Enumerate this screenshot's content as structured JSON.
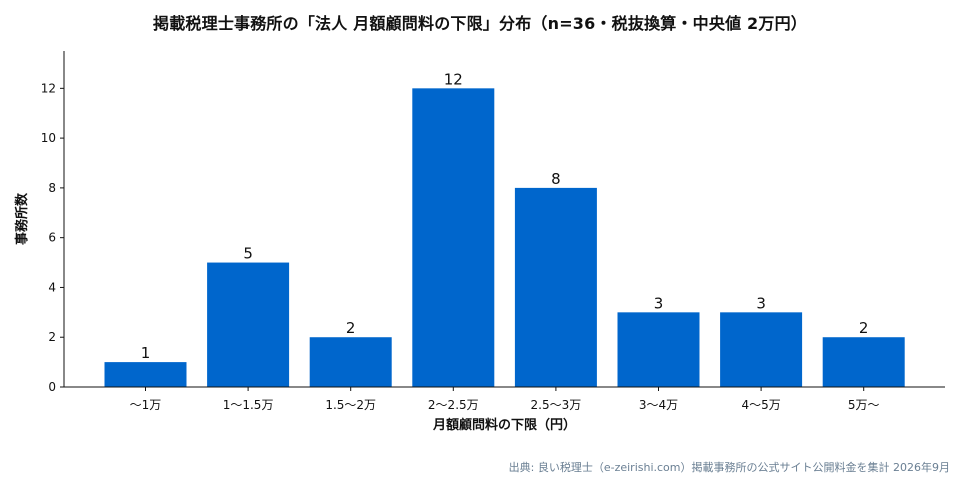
{
  "chart_data": {
    "type": "bar",
    "title": "掲載税理士事務所の「法人 月額顧問料の下限」分布（n=36・税抜換算・中央値 2万円）",
    "xlabel": "月額顧問料の下限（円）",
    "ylabel": "事務所数",
    "categories": [
      "〜1万",
      "1〜1.5万",
      "1.5〜2万",
      "2〜2.5万",
      "2.5〜3万",
      "3〜4万",
      "4〜5万",
      "5万〜"
    ],
    "values": [
      1,
      5,
      2,
      12,
      8,
      3,
      3,
      2
    ],
    "ylim": [
      0,
      13.5
    ],
    "yticks": [
      0,
      2,
      4,
      6,
      8,
      10,
      12
    ],
    "bar_color": "#0066cc",
    "grid": false,
    "data_labels": true
  },
  "source_note": "出典: 良い税理士（e-zeirishi.com）掲載事務所の公式サイト公開料金を集計 2026年9月"
}
